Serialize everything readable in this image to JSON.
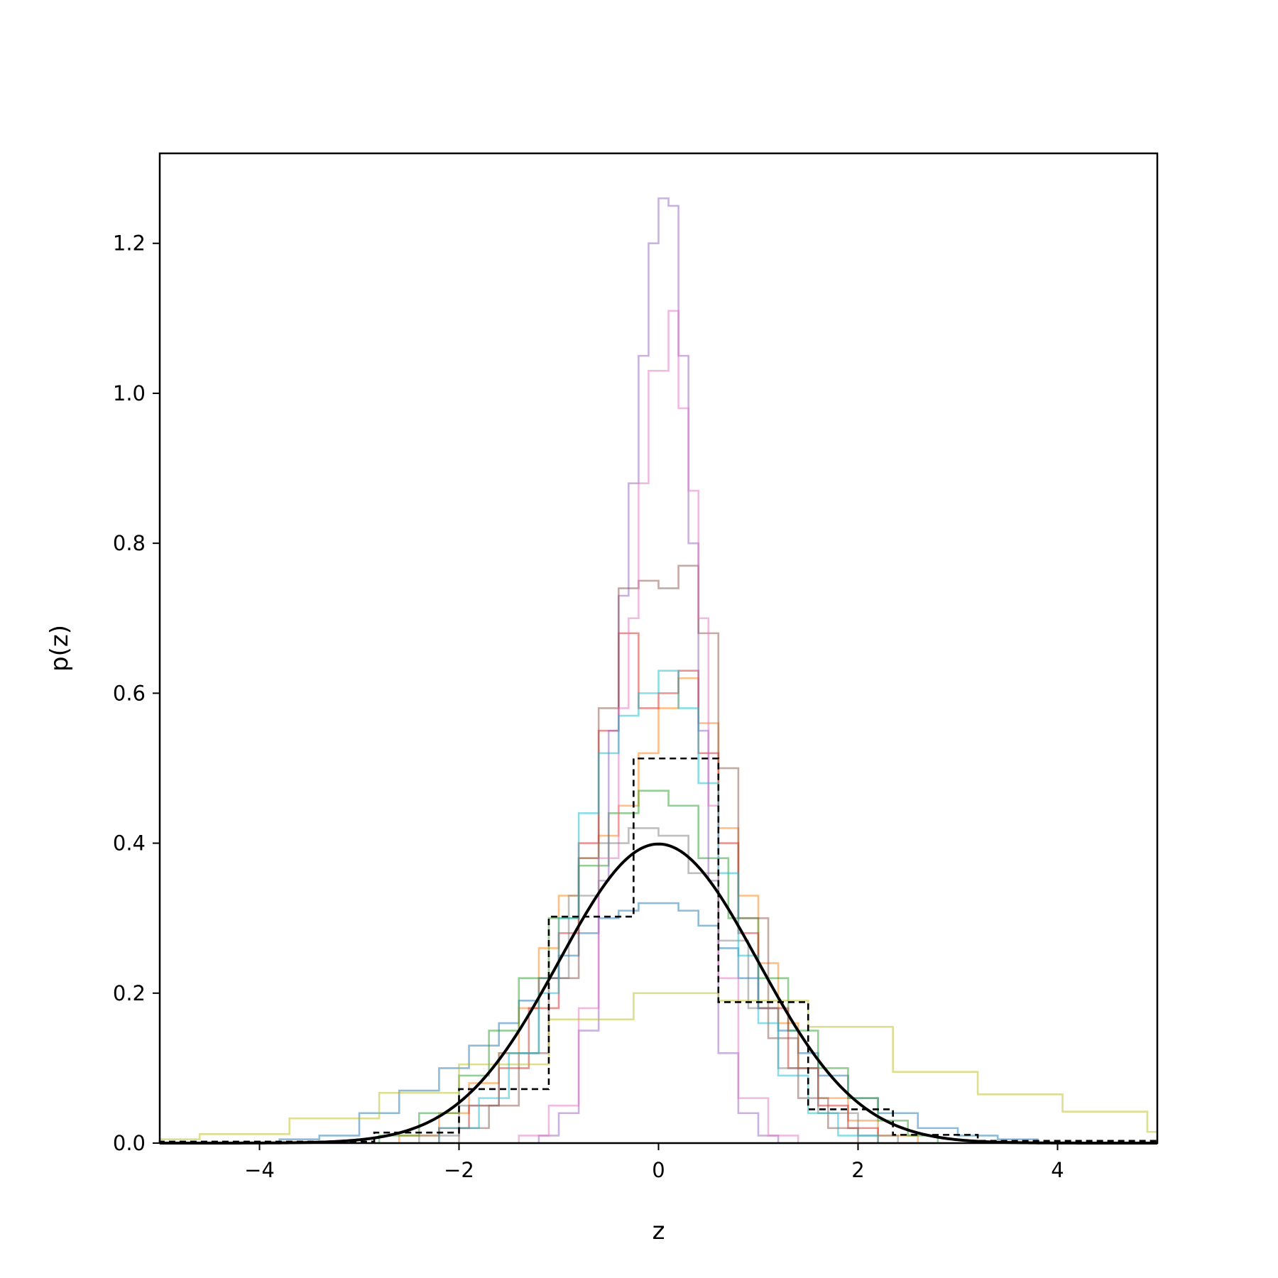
{
  "chart_data": {
    "type": "histogram",
    "title": "",
    "xlabel": "z",
    "ylabel": "p(z)",
    "xlim": [
      -5,
      5
    ],
    "ylim": [
      0,
      1.32
    ],
    "xticks": [
      -4,
      -2,
      0,
      2,
      4
    ],
    "xtick_labels": [
      "−4",
      "−2",
      "0",
      "2",
      "4"
    ],
    "yticks": [
      0.0,
      0.2,
      0.4,
      0.6,
      0.8,
      1.0,
      1.2
    ],
    "ytick_labels": [
      "0.0",
      "0.2",
      "0.4",
      "0.6",
      "0.8",
      "1.0",
      "1.2"
    ],
    "grid": false,
    "legend": "none",
    "series": [
      {
        "color": "#1f77b4",
        "kind": "step",
        "edges": [
          -3.8,
          -3.4,
          -3.0,
          -2.6,
          -2.2,
          -1.9,
          -1.6,
          -1.4,
          -1.2,
          -1.0,
          -0.8,
          -0.6,
          -0.4,
          -0.2,
          0.0,
          0.2,
          0.4,
          0.6,
          0.8,
          1.0,
          1.2,
          1.4,
          1.6,
          1.9,
          2.2,
          2.6,
          3.0,
          3.4,
          3.8
        ],
        "values": [
          0.005,
          0.01,
          0.04,
          0.07,
          0.1,
          0.13,
          0.16,
          0.19,
          0.22,
          0.25,
          0.28,
          0.3,
          0.31,
          0.32,
          0.32,
          0.31,
          0.29,
          0.26,
          0.22,
          0.18,
          0.15,
          0.12,
          0.09,
          0.06,
          0.04,
          0.02,
          0.01,
          0.005
        ]
      },
      {
        "color": "#ff7f0e",
        "kind": "step",
        "edges": [
          -2.6,
          -2.2,
          -1.9,
          -1.6,
          -1.4,
          -1.2,
          -1.0,
          -0.8,
          -0.6,
          -0.4,
          -0.2,
          0.0,
          0.2,
          0.4,
          0.6,
          0.8,
          1.0,
          1.2,
          1.4,
          1.6,
          1.9,
          2.2,
          2.6
        ],
        "values": [
          0.01,
          0.04,
          0.08,
          0.12,
          0.18,
          0.26,
          0.33,
          0.38,
          0.41,
          0.45,
          0.52,
          0.58,
          0.62,
          0.56,
          0.42,
          0.33,
          0.24,
          0.16,
          0.1,
          0.06,
          0.03,
          0.01
        ]
      },
      {
        "color": "#2ca02c",
        "kind": "step",
        "edges": [
          -2.8,
          -2.4,
          -2.0,
          -1.7,
          -1.4,
          -1.1,
          -0.8,
          -0.5,
          -0.2,
          0.1,
          0.4,
          0.7,
          1.0,
          1.3,
          1.6,
          1.9,
          2.2,
          2.5,
          2.8
        ],
        "values": [
          0.01,
          0.04,
          0.09,
          0.15,
          0.22,
          0.3,
          0.37,
          0.44,
          0.47,
          0.45,
          0.38,
          0.3,
          0.22,
          0.15,
          0.1,
          0.06,
          0.03,
          0.01
        ]
      },
      {
        "color": "#d62728",
        "kind": "step",
        "edges": [
          -2.2,
          -1.9,
          -1.6,
          -1.3,
          -1.0,
          -0.8,
          -0.6,
          -0.4,
          -0.2,
          0.0,
          0.2,
          0.4,
          0.6,
          0.8,
          1.0,
          1.3,
          1.6,
          1.9,
          2.2
        ],
        "values": [
          0.02,
          0.05,
          0.1,
          0.18,
          0.28,
          0.4,
          0.55,
          0.68,
          0.58,
          0.6,
          0.63,
          0.52,
          0.4,
          0.28,
          0.18,
          0.1,
          0.05,
          0.02
        ]
      },
      {
        "color": "#9467bd",
        "kind": "step",
        "edges": [
          -1.2,
          -1.0,
          -0.8,
          -0.6,
          -0.5,
          -0.4,
          -0.3,
          -0.2,
          -0.1,
          0.0,
          0.1,
          0.2,
          0.3,
          0.4,
          0.5,
          0.6,
          0.8,
          1.0,
          1.2
        ],
        "values": [
          0.01,
          0.04,
          0.15,
          0.35,
          0.55,
          0.73,
          0.88,
          1.05,
          1.2,
          1.26,
          1.25,
          1.05,
          0.8,
          0.55,
          0.35,
          0.12,
          0.04,
          0.01
        ]
      },
      {
        "color": "#8c564b",
        "kind": "step",
        "edges": [
          -2.0,
          -1.7,
          -1.4,
          -1.1,
          -0.8,
          -0.6,
          -0.4,
          -0.2,
          0.0,
          0.2,
          0.4,
          0.6,
          0.8,
          1.1,
          1.4,
          1.7,
          2.0
        ],
        "values": [
          0.02,
          0.05,
          0.12,
          0.22,
          0.38,
          0.58,
          0.74,
          0.75,
          0.74,
          0.77,
          0.68,
          0.5,
          0.3,
          0.14,
          0.06,
          0.02
        ]
      },
      {
        "color": "#e377c2",
        "kind": "step",
        "edges": [
          -1.4,
          -1.1,
          -0.8,
          -0.6,
          -0.4,
          -0.3,
          -0.2,
          -0.1,
          0.0,
          0.1,
          0.2,
          0.3,
          0.4,
          0.5,
          0.6,
          0.8,
          1.1,
          1.4
        ],
        "values": [
          0.01,
          0.05,
          0.18,
          0.38,
          0.58,
          0.7,
          0.88,
          1.03,
          1.03,
          1.11,
          0.98,
          0.87,
          0.7,
          0.45,
          0.22,
          0.06,
          0.01
        ]
      },
      {
        "color": "#7f7f7f",
        "kind": "step",
        "edges": [
          -2.4,
          -2.0,
          -1.6,
          -1.2,
          -0.9,
          -0.6,
          -0.3,
          0.0,
          0.3,
          0.6,
          0.9,
          1.2,
          1.6,
          2.0,
          2.4
        ],
        "values": [
          0.01,
          0.05,
          0.12,
          0.22,
          0.33,
          0.4,
          0.42,
          0.41,
          0.36,
          0.27,
          0.18,
          0.1,
          0.04,
          0.01
        ]
      },
      {
        "color": "#bcbd22",
        "kind": "step",
        "edges": [
          -5.0,
          -4.6,
          -3.7,
          -2.8,
          -2.0,
          -1.1,
          -0.25,
          0.6,
          1.5,
          2.35,
          3.2,
          4.05,
          4.9,
          5.0
        ],
        "values": [
          0.005,
          0.012,
          0.033,
          0.067,
          0.105,
          0.165,
          0.2,
          0.19,
          0.155,
          0.095,
          0.065,
          0.042,
          0.015
        ]
      },
      {
        "color": "#17becf",
        "kind": "step",
        "edges": [
          -2.2,
          -1.8,
          -1.5,
          -1.2,
          -1.0,
          -0.8,
          -0.6,
          -0.4,
          -0.2,
          0.0,
          0.2,
          0.4,
          0.6,
          0.8,
          1.0,
          1.2,
          1.5,
          1.8,
          2.2
        ],
        "values": [
          0.02,
          0.06,
          0.12,
          0.2,
          0.3,
          0.44,
          0.52,
          0.57,
          0.6,
          0.63,
          0.58,
          0.48,
          0.36,
          0.25,
          0.16,
          0.09,
          0.04,
          0.01
        ]
      },
      {
        "color": "#000000",
        "kind": "dashed-step",
        "edges": [
          -5.0,
          -2.85,
          -2.0,
          -1.1,
          -0.25,
          0.6,
          1.5,
          2.35,
          3.2,
          5.0
        ],
        "values": [
          0.002,
          0.014,
          0.072,
          0.302,
          0.513,
          0.188,
          0.045,
          0.011,
          0.003
        ]
      },
      {
        "color": "#000000",
        "kind": "curve",
        "function": "standard normal pdf",
        "mean": 0,
        "std": 1
      }
    ]
  }
}
